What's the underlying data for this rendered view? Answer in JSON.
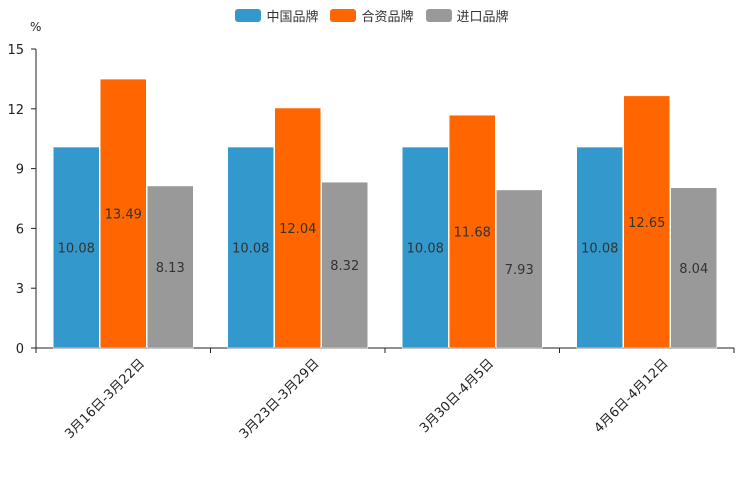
{
  "chart_data": {
    "type": "bar",
    "title": "",
    "ylabel": "%",
    "xlabel": "",
    "ylim": [
      0,
      15
    ],
    "yticks": [
      0,
      3,
      6,
      9,
      12,
      15
    ],
    "categories": [
      "3月16日-3月22日",
      "3月23日-3月29日",
      "3月30日-4月5日",
      "4月6日-4月12日"
    ],
    "series": [
      {
        "name": "中国品牌",
        "color": "#3399cc",
        "values": [
          10.08,
          10.08,
          10.08,
          10.08
        ],
        "labels": [
          "10.08",
          "10.08",
          "10.08",
          "10.08"
        ]
      },
      {
        "name": "合资品牌",
        "color": "#ff6600",
        "values": [
          13.49,
          12.04,
          11.68,
          12.65
        ],
        "labels": [
          "13.49",
          "12.04",
          "11.68",
          "12.65"
        ]
      },
      {
        "name": "进口品牌",
        "color": "#999999",
        "values": [
          8.13,
          8.32,
          7.93,
          8.04
        ],
        "labels": [
          "8.13",
          "8.32",
          "7.93",
          "8.04"
        ]
      }
    ],
    "legend_position": "top-center"
  }
}
